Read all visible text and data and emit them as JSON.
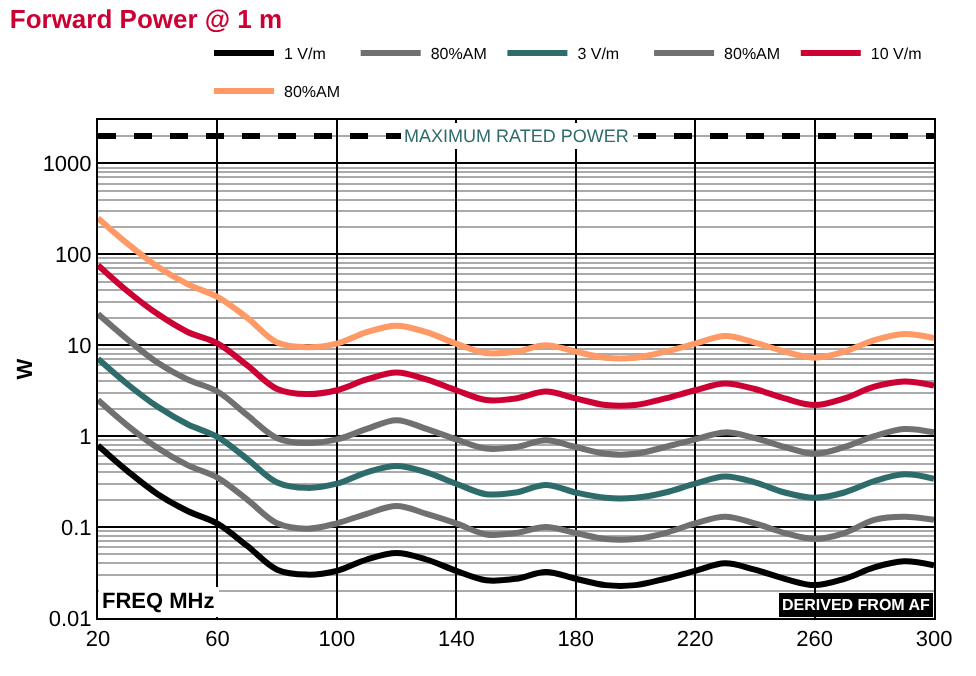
{
  "chart_data": {
    "type": "line",
    "title": "Forward Power @ 1 m",
    "xlabel": "FREQ MHz",
    "ylabel": "W",
    "x": [
      20,
      30,
      40,
      50,
      60,
      70,
      80,
      90,
      100,
      110,
      120,
      130,
      140,
      150,
      160,
      170,
      180,
      190,
      200,
      210,
      220,
      230,
      240,
      250,
      260,
      270,
      280,
      290,
      300
    ],
    "series": [
      {
        "name": "1 V/m",
        "color": "#000000",
        "values": [
          0.79,
          0.41,
          0.23,
          0.15,
          0.109,
          0.062,
          0.034,
          0.03,
          0.033,
          0.044,
          0.052,
          0.044,
          0.033,
          0.026,
          0.027,
          0.032,
          0.027,
          0.023,
          0.023,
          0.027,
          0.033,
          0.04,
          0.034,
          0.027,
          0.023,
          0.027,
          0.036,
          0.042,
          0.038
        ]
      },
      {
        "name": "80%AM",
        "color": "#707070",
        "values": [
          2.5,
          1.3,
          0.74,
          0.48,
          0.35,
          0.2,
          0.11,
          0.096,
          0.11,
          0.14,
          0.17,
          0.14,
          0.11,
          0.083,
          0.086,
          0.1,
          0.086,
          0.074,
          0.074,
          0.086,
          0.11,
          0.13,
          0.11,
          0.086,
          0.074,
          0.086,
          0.12,
          0.13,
          0.12
        ]
      },
      {
        "name": "3 V/m",
        "color": "#2e6b6b",
        "values": [
          7.1,
          3.7,
          2.1,
          1.35,
          0.98,
          0.56,
          0.31,
          0.27,
          0.3,
          0.4,
          0.47,
          0.4,
          0.3,
          0.23,
          0.24,
          0.29,
          0.24,
          0.21,
          0.21,
          0.24,
          0.3,
          0.36,
          0.31,
          0.24,
          0.21,
          0.24,
          0.32,
          0.38,
          0.34
        ]
      },
      {
        "name": "80%AM",
        "color": "#707070",
        "values": [
          22,
          11.5,
          6.4,
          4.2,
          3.1,
          1.7,
          0.95,
          0.84,
          0.92,
          1.2,
          1.5,
          1.2,
          0.92,
          0.73,
          0.76,
          0.9,
          0.76,
          0.64,
          0.64,
          0.76,
          0.92,
          1.1,
          0.95,
          0.76,
          0.64,
          0.76,
          1.0,
          1.2,
          1.1
        ]
      },
      {
        "name": "10 V/m",
        "color": "#cc0033",
        "values": [
          76,
          39,
          22,
          14,
          10.5,
          6,
          3.3,
          2.9,
          3.2,
          4.2,
          5,
          4.2,
          3.2,
          2.5,
          2.6,
          3.1,
          2.6,
          2.2,
          2.2,
          2.6,
          3.2,
          3.8,
          3.3,
          2.6,
          2.2,
          2.6,
          3.5,
          4,
          3.6
        ]
      },
      {
        "name": "80%AM",
        "color": "#ff9966",
        "values": [
          250,
          130,
          73,
          47,
          34,
          20,
          10.7,
          9.5,
          10.4,
          13.9,
          16.4,
          13.9,
          10.4,
          8.2,
          8.5,
          10,
          8.5,
          7.3,
          7.3,
          8.5,
          10.4,
          12.6,
          10.7,
          8.5,
          7.3,
          8.5,
          11.4,
          13.3,
          12
        ]
      }
    ],
    "xlim": [
      20,
      300
    ],
    "xticks": [
      20,
      60,
      100,
      140,
      180,
      220,
      260,
      300
    ],
    "ylim": [
      0.01,
      3000
    ],
    "yticks": [
      0.01,
      0.1,
      1,
      10,
      100,
      1000
    ],
    "log": "y",
    "grid": true,
    "legend": "top right",
    "marker": "none",
    "line_style": "solid",
    "ref_lines": [
      {
        "axis": "y",
        "value": 2000,
        "label": "MAXIMUM RATED POWER",
        "color": "#000000",
        "line_style": "dashed"
      }
    ],
    "annotations": [
      "DERIVED FROM AF"
    ]
  }
}
